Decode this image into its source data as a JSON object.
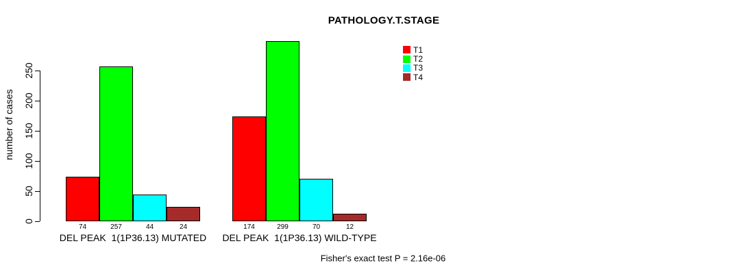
{
  "chart_data": {
    "type": "bar",
    "title": "PATHOLOGY.T.STAGE",
    "ylabel": "number of cases",
    "xlabel": "",
    "ylim": [
      0,
      250
    ],
    "yticks": [
      0,
      50,
      100,
      150,
      200,
      250
    ],
    "grid": false,
    "legend_position": "top-right",
    "categories": [
      "DEL PEAK  1(1P36.13) MUTATED",
      "DEL PEAK  1(1P36.13) WILD-TYPE"
    ],
    "series": [
      {
        "name": "T1",
        "color": "#FF0000",
        "values": [
          74,
          174
        ]
      },
      {
        "name": "T2",
        "color": "#00FF00",
        "values": [
          257,
          299
        ]
      },
      {
        "name": "T3",
        "color": "#00FFFF",
        "values": [
          44,
          70
        ]
      },
      {
        "name": "T4",
        "color": "#A52A2A",
        "values": [
          24,
          12
        ]
      }
    ],
    "bar_value_labels": [
      [
        "74",
        "257",
        "44",
        "24"
      ],
      [
        "174",
        "299",
        "70",
        "12"
      ]
    ],
    "annotation": "Fisher's exact test P = 2.16e-06"
  },
  "colors": {
    "axis": "#000000",
    "background": "#FFFFFF",
    "t1": "#FF0000",
    "t2": "#00FF00",
    "t3": "#00FFFF",
    "t4": "#A52A2A"
  }
}
